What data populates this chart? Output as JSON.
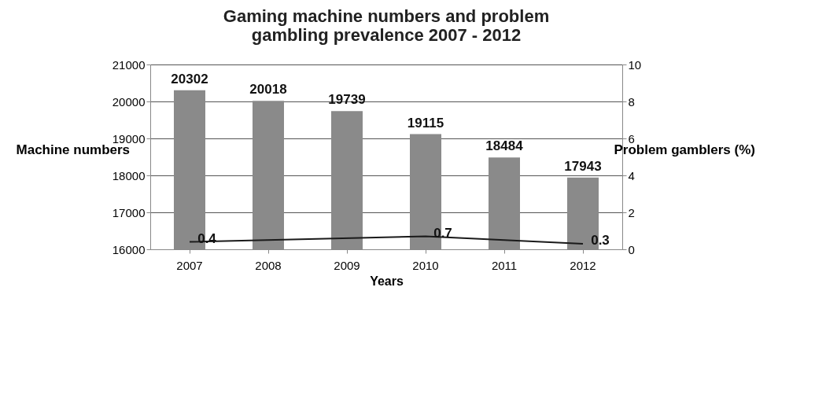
{
  "chart_data": {
    "type": "bar",
    "title": "Gaming machine numbers and problem gambling prevalence 2007 - 2012",
    "xlabel": "Years",
    "ylabel": "Machine numbers",
    "y2label": "Problem gamblers (%)",
    "categories": [
      "2007",
      "2008",
      "2009",
      "2010",
      "2011",
      "2012"
    ],
    "series": [
      {
        "color": "#8a8a8a",
        "values": [
          20302,
          20018,
          19739,
          19115,
          18484,
          17943
        ]
      },
      {
        "type": "line",
        "axis": "y2",
        "color": "#1a1a1a",
        "values": [
          0.4,
          null,
          null,
          0.7,
          null,
          0.3
        ]
      }
    ],
    "ylim": [
      16000,
      21000
    ],
    "yticks": [
      16000,
      17000,
      18000,
      19000,
      20000,
      21000
    ],
    "y2lim": [
      0,
      10
    ],
    "y2ticks": [
      0,
      2,
      4,
      6,
      8,
      10
    ],
    "data_labels": true,
    "grid": "y"
  }
}
